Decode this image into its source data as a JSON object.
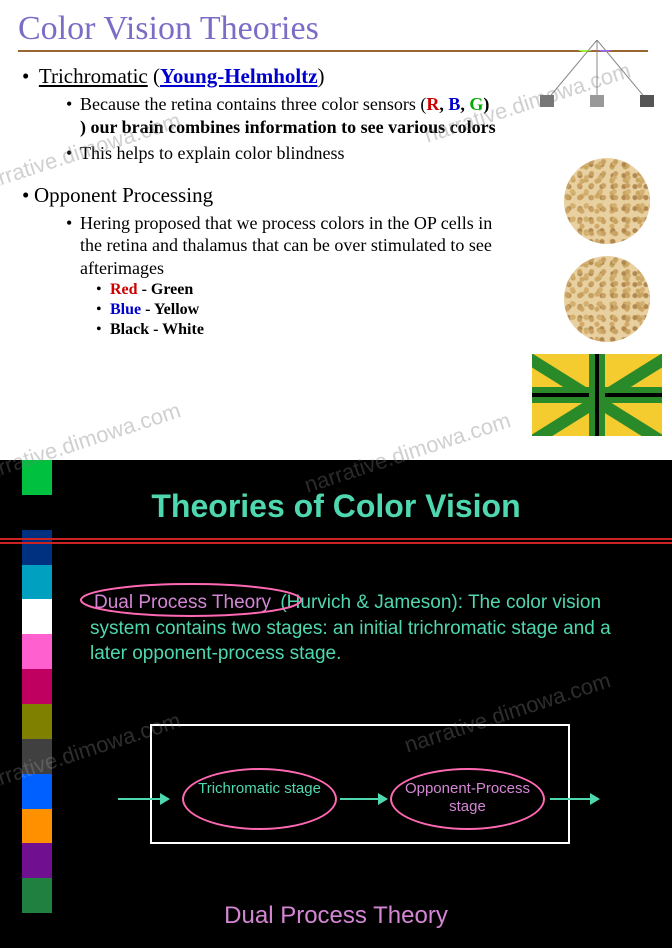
{
  "topSlide": {
    "title": "Color Vision Theories",
    "title_color": "#7b6dc7",
    "underline_color": "#996633",
    "trich": {
      "label": "Trichromatic",
      "link": "Young-Helmholtz",
      "sub1_pre": "Because the retina contains three color sensors (",
      "sub1_R": "R",
      "sub1_mid1": ", ",
      "sub1_B": "B",
      "sub1_mid2": ", ",
      "sub1_G": "G",
      "sub1_post": ") our brain combines information to see various colors",
      "sub2": "This helps to explain color blindness"
    },
    "opp": {
      "label": "Opponent Processing",
      "sub1": "Hering proposed that we process colors in the OP cells in the retina and thalamus that can be over stimulated to see afterimages",
      "pair1a": "Red",
      "pair1b": " - Green",
      "pair2a": "Blue",
      "pair2b": " - Yellow",
      "pair3": "Black - White"
    },
    "flag_colors": {
      "bg": "#f5cc30",
      "cross": "#2a8a2a",
      "inner": "#000000"
    },
    "plate_color": "#e8d0a0"
  },
  "bottomSlide": {
    "title": "Theories of Color Vision",
    "title_color": "#4fd8b0",
    "bg": "#000000",
    "accent_red": "#cc2222",
    "body": {
      "dpt": "Dual Process Theory",
      "authors": " (Hurvich & Jameson): ",
      "rest": "The color vision system contains two stages: an initial trichromatic stage and a later opponent-process stage."
    },
    "body_color": "#4fd8b0",
    "pink": "#d486d4",
    "ellipse_stroke": "#ff69b4",
    "stage1": "Trichromatic stage",
    "stage2": "Opponent-Process stage",
    "caption": "Dual Process Theory",
    "vstrip_colors": [
      "#00c040",
      "#000000",
      "#003080",
      "#00a0c0",
      "#ffffff",
      "#ff60d0",
      "#c00060",
      "#808000",
      "#404040",
      "#0060ff",
      "#ff9000",
      "#701090",
      "#208040",
      "#000000"
    ]
  },
  "watermark": "narrative.dimowa.com"
}
